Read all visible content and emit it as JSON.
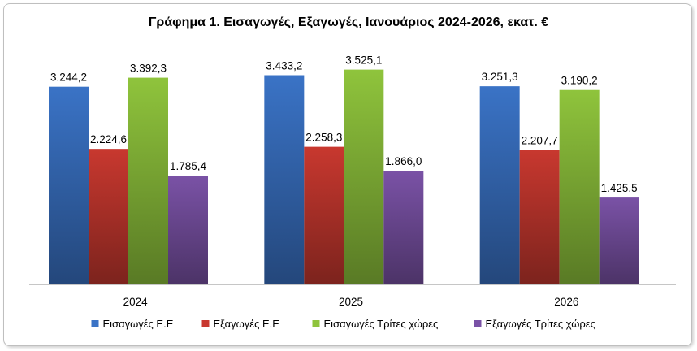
{
  "chart_data": {
    "type": "bar",
    "title": "Γράφημα 1. Εισαγωγές, Εξαγωγές, Ιανουάριος 2024-2026, εκατ. €",
    "categories": [
      "2024",
      "2025",
      "2026"
    ],
    "series": [
      {
        "name": "Εισαγωγές Ε.Ε",
        "color": "#3a73c6",
        "values": [
          3244.2,
          3433.2,
          3251.3
        ],
        "labels": [
          "3.244,2",
          "3.433,2",
          "3.251,3"
        ]
      },
      {
        "name": "Εξαγωγές  Ε.Ε",
        "color": "#c8382f",
        "values": [
          2224.6,
          2258.3,
          2207.7
        ],
        "labels": [
          "2.224,6",
          "2.258,3",
          "2.207,7"
        ]
      },
      {
        "name": "Εισαγωγές Τρίτες χώρες",
        "color": "#8fc43c",
        "values": [
          3392.3,
          3525.1,
          3190.2
        ],
        "labels": [
          "3.392,3",
          "3.525,1",
          "3.190,2"
        ]
      },
      {
        "name": "Εξαγωγές Τρίτες χώρες",
        "color": "#7a52a6",
        "values": [
          1785.4,
          1866.0,
          1425.5
        ],
        "labels": [
          "1.785,4",
          "1.866,0",
          "1.425,5"
        ]
      }
    ],
    "ylim": [
      0,
      4000
    ],
    "grid": false,
    "legend": "bottom",
    "xlabel": "",
    "ylabel": ""
  }
}
